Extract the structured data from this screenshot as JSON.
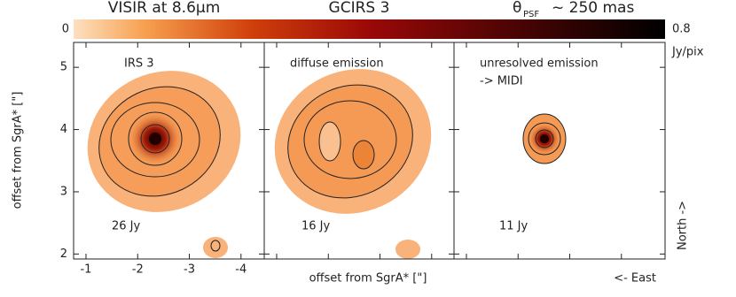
{
  "header": {
    "instrument": "VISIR at 8.6μm",
    "target": "GCIRS 3",
    "theta": "θ",
    "psf": "PSF",
    "resolution": "~ 250 mas"
  },
  "colorbar": {
    "lim": [
      0,
      0.8
    ],
    "unit": "Jy/pix"
  },
  "panels": [
    {
      "label": [
        "IRS 3"
      ],
      "flux": "26 Jy"
    },
    {
      "label": [
        "diffuse emission"
      ],
      "flux": "16 Jy"
    },
    {
      "label": [
        "unresolved emission",
        "-> MIDI"
      ],
      "flux": "11 Jy"
    }
  ],
  "y_axis": {
    "label": "offset from SgrA* [\"]",
    "lim": [
      1.92,
      5.4
    ],
    "ticks": [
      2,
      3,
      4,
      5
    ]
  },
  "x_axis": {
    "label": "offset from SgrA* [\"]",
    "lim": [
      -0.76,
      -4.45
    ],
    "ticks": [
      -1,
      -2,
      -3,
      -4
    ]
  },
  "orientation": {
    "north": "North ->",
    "east": "<- East"
  }
}
